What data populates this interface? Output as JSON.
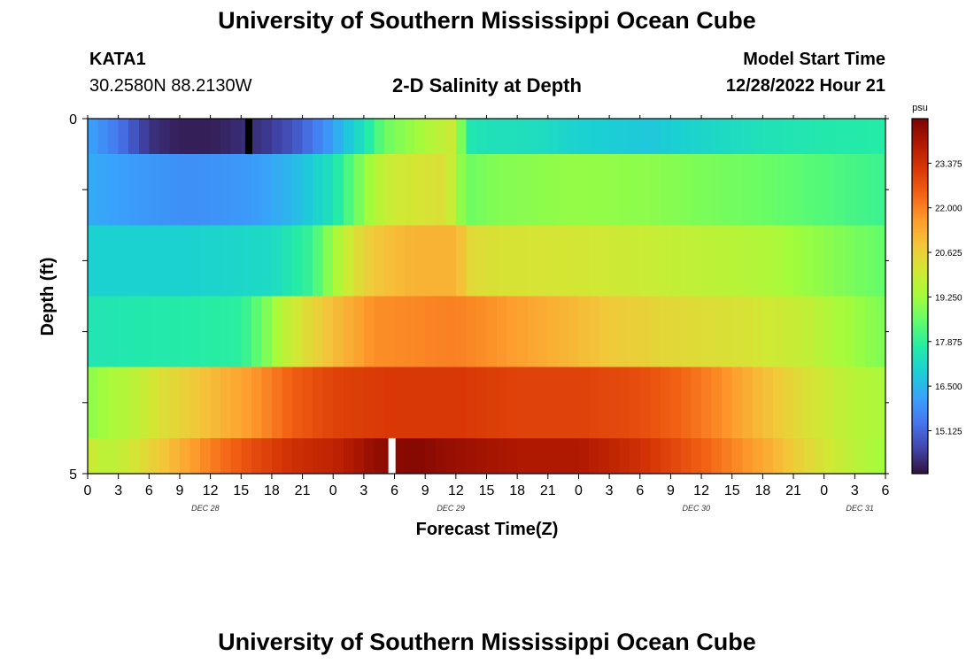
{
  "page": {
    "title": "University of Southern Mississippi Ocean Cube",
    "title_repeat": "University of Southern Mississippi Ocean Cube",
    "station": "KATA1",
    "coords": "30.2580N  88.2130W",
    "subtitle": "2-D Salinity at Depth",
    "model_start_label": "Model Start Time",
    "model_start_value": "12/28/2022 Hour 21"
  },
  "colors": {
    "palette": [
      "#30123b",
      "#4145ab",
      "#4675ed",
      "#39a2fc",
      "#1bcfd4",
      "#24eca6",
      "#61fc6c",
      "#a4fc3b",
      "#d1e834",
      "#f3c63a",
      "#fe9b2d",
      "#f36315",
      "#d93806",
      "#b11901",
      "#7a0402"
    ],
    "sample_gap_top": "#000000",
    "sample_gap_bottom": "#ffffff"
  },
  "chart_data": {
    "type": "heatmap",
    "title": "2-D Salinity at Depth",
    "xlabel": "Forecast Time(Z)",
    "ylabel": "Depth (ft)",
    "ylim": [
      0,
      5
    ],
    "y_tick_labels": [
      "0",
      "5"
    ],
    "x_hours_range": [
      0,
      78
    ],
    "x_tick_labels": [
      "0",
      "3",
      "6",
      "9",
      "12",
      "15",
      "18",
      "21",
      "0",
      "3",
      "6",
      "9",
      "12",
      "15",
      "18",
      "21",
      "0",
      "3",
      "6",
      "9",
      "12",
      "15",
      "18",
      "21",
      "0",
      "3",
      "6"
    ],
    "date_labels": [
      {
        "label": "DEC 28",
        "hour": 11.5
      },
      {
        "label": "DEC 29",
        "hour": 35.5
      },
      {
        "label": "DEC 30",
        "hour": 59.5
      },
      {
        "label": "DEC 31",
        "hour": 75.5
      }
    ],
    "colorbar": {
      "units": "psu",
      "min": 13.8,
      "max": 24.75,
      "ticks": [
        "23.375",
        "22.000",
        "20.625",
        "19.250",
        "17.875",
        "16.500",
        "15.125"
      ]
    },
    "depth_layers": [
      {
        "depth_range": [
          0,
          0.5
        ],
        "keys": [
          [
            0,
            16.2
          ],
          [
            3,
            15.4
          ],
          [
            6,
            14.3
          ],
          [
            9,
            14.0
          ],
          [
            12,
            14.0
          ],
          [
            15,
            14.2
          ],
          [
            17,
            14.3
          ],
          [
            20,
            14.8
          ],
          [
            23,
            15.7
          ],
          [
            25,
            16.6
          ],
          [
            27,
            17.4
          ],
          [
            29,
            18.6
          ],
          [
            31,
            19.0
          ],
          [
            34,
            19.6
          ],
          [
            36,
            20.0
          ],
          [
            37,
            17.6
          ],
          [
            39,
            17.4
          ],
          [
            44,
            17.3
          ],
          [
            48,
            17.0
          ],
          [
            55,
            16.8
          ],
          [
            60,
            17.1
          ],
          [
            66,
            17.4
          ],
          [
            72,
            17.6
          ],
          [
            78,
            17.7
          ]
        ]
      },
      {
        "depth_range": [
          0.5,
          1.5
        ],
        "keys": [
          [
            0,
            16.3
          ],
          [
            5,
            16.0
          ],
          [
            10,
            15.8
          ],
          [
            16,
            16.0
          ],
          [
            20,
            16.5
          ],
          [
            24,
            17.4
          ],
          [
            26,
            18.5
          ],
          [
            28,
            19.5
          ],
          [
            30,
            20.0
          ],
          [
            35,
            20.3
          ],
          [
            37,
            18.6
          ],
          [
            40,
            18.9
          ],
          [
            48,
            19.1
          ],
          [
            55,
            19.0
          ],
          [
            60,
            18.8
          ],
          [
            66,
            18.6
          ],
          [
            72,
            18.3
          ],
          [
            78,
            18.0
          ]
        ]
      },
      {
        "depth_range": [
          1.5,
          2.5
        ],
        "keys": [
          [
            0,
            17.0
          ],
          [
            10,
            17.0
          ],
          [
            18,
            17.2
          ],
          [
            22,
            18.0
          ],
          [
            24,
            19.2
          ],
          [
            26,
            20.2
          ],
          [
            28,
            20.8
          ],
          [
            32,
            21.2
          ],
          [
            36,
            21.2
          ],
          [
            37.5,
            20.4
          ],
          [
            40,
            20.2
          ],
          [
            48,
            20.1
          ],
          [
            55,
            19.9
          ],
          [
            60,
            19.7
          ],
          [
            66,
            19.5
          ],
          [
            72,
            19.0
          ],
          [
            78,
            18.5
          ]
        ]
      },
      {
        "depth_range": [
          2.5,
          3.5
        ],
        "keys": [
          [
            0,
            17.5
          ],
          [
            15,
            17.8
          ],
          [
            17,
            18.6
          ],
          [
            19,
            19.6
          ],
          [
            22,
            20.5
          ],
          [
            25,
            21.2
          ],
          [
            28,
            21.8
          ],
          [
            36,
            22.0
          ],
          [
            40,
            21.7
          ],
          [
            46,
            21.2
          ],
          [
            52,
            20.7
          ],
          [
            58,
            20.4
          ],
          [
            64,
            20.2
          ],
          [
            70,
            19.8
          ],
          [
            74,
            19.3
          ],
          [
            78,
            18.8
          ]
        ]
      },
      {
        "depth_range": [
          3.5,
          4.5
        ],
        "keys": [
          [
            0,
            19.0
          ],
          [
            4,
            19.6
          ],
          [
            8,
            20.4
          ],
          [
            12,
            21.0
          ],
          [
            16,
            21.6
          ],
          [
            20,
            22.5
          ],
          [
            24,
            23.0
          ],
          [
            30,
            23.2
          ],
          [
            36,
            23.2
          ],
          [
            42,
            23.0
          ],
          [
            48,
            23.0
          ],
          [
            54,
            22.8
          ],
          [
            58,
            22.4
          ],
          [
            62,
            21.8
          ],
          [
            66,
            21.0
          ],
          [
            70,
            20.3
          ],
          [
            74,
            19.7
          ],
          [
            78,
            19.4
          ]
        ]
      },
      {
        "depth_range": [
          4.5,
          5
        ],
        "keys": [
          [
            0,
            20.0
          ],
          [
            2,
            19.6
          ],
          [
            4,
            20.0
          ],
          [
            8,
            21.0
          ],
          [
            12,
            22.0
          ],
          [
            16,
            22.8
          ],
          [
            20,
            23.4
          ],
          [
            24,
            23.7
          ],
          [
            26,
            24.0
          ],
          [
            28,
            24.4
          ],
          [
            32,
            24.6
          ],
          [
            36,
            24.3
          ],
          [
            42,
            24.0
          ],
          [
            48,
            24.0
          ],
          [
            54,
            23.4
          ],
          [
            60,
            22.5
          ],
          [
            66,
            21.4
          ],
          [
            70,
            20.5
          ],
          [
            74,
            19.8
          ],
          [
            78,
            19.2
          ]
        ]
      }
    ],
    "sample_gaps": [
      {
        "layer": 0,
        "hour": 15.75
      },
      {
        "layer": 5,
        "hour": 29.75
      }
    ]
  }
}
